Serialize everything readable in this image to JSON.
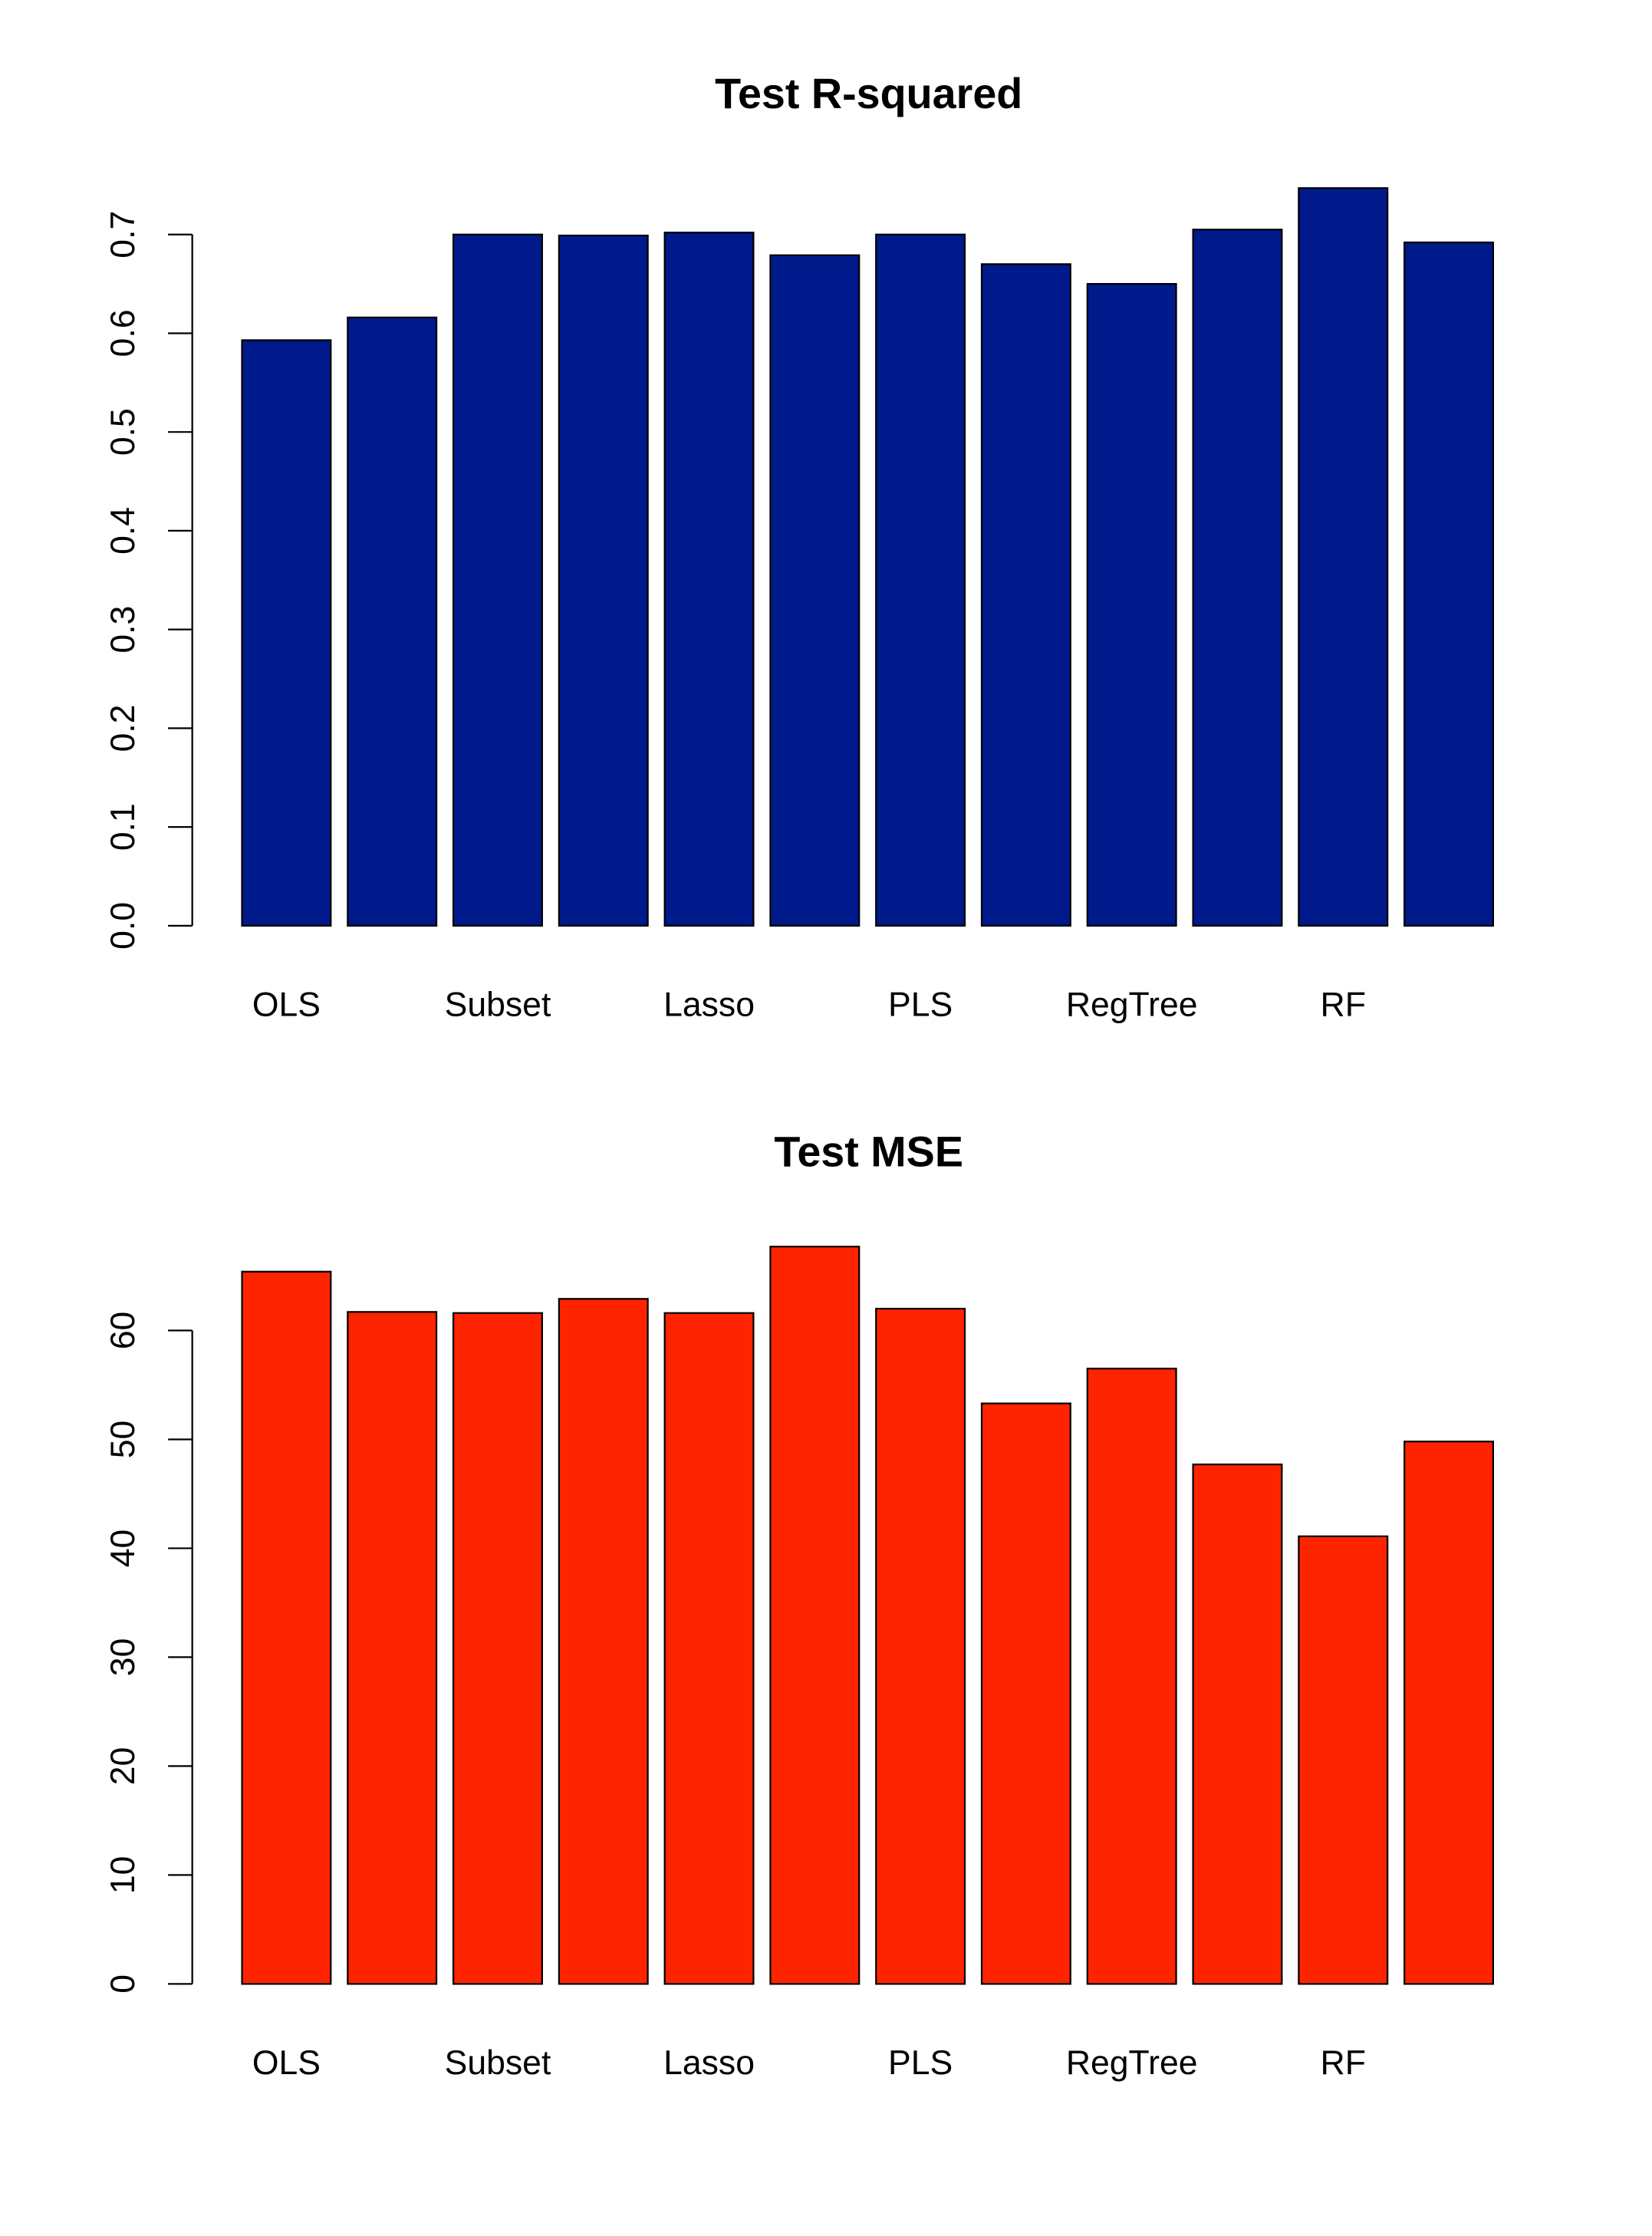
{
  "chart_data": [
    {
      "type": "bar",
      "title": "Test R-squared",
      "categories": [
        "OLS",
        null,
        "Subset",
        null,
        "Lasso",
        null,
        "PLS",
        null,
        "RegTree",
        null,
        "RF",
        null
      ],
      "values": [
        0.593,
        0.616,
        0.7,
        0.699,
        0.702,
        0.679,
        0.7,
        0.67,
        0.65,
        0.705,
        0.747,
        0.692
      ],
      "color": "#001a8c",
      "ylim": [
        0,
        0.75
      ],
      "yticks": [
        {
          "value": 0,
          "label": "0.0"
        },
        0.1,
        0.2,
        0.3,
        0.4,
        0.5,
        0.6,
        0.7
      ]
    },
    {
      "type": "bar",
      "title": "Test MSE",
      "categories": [
        "OLS",
        null,
        "Subset",
        null,
        "Lasso",
        null,
        "PLS",
        null,
        "RegTree",
        null,
        "RF",
        null
      ],
      "values": [
        65.4,
        61.7,
        61.6,
        62.9,
        61.6,
        67.7,
        62.0,
        53.3,
        56.5,
        47.7,
        41.1,
        49.8
      ],
      "color": "#ff2400",
      "ylim": [
        0,
        68
      ],
      "yticks": [
        0,
        10,
        20,
        30,
        40,
        50,
        60
      ]
    }
  ]
}
